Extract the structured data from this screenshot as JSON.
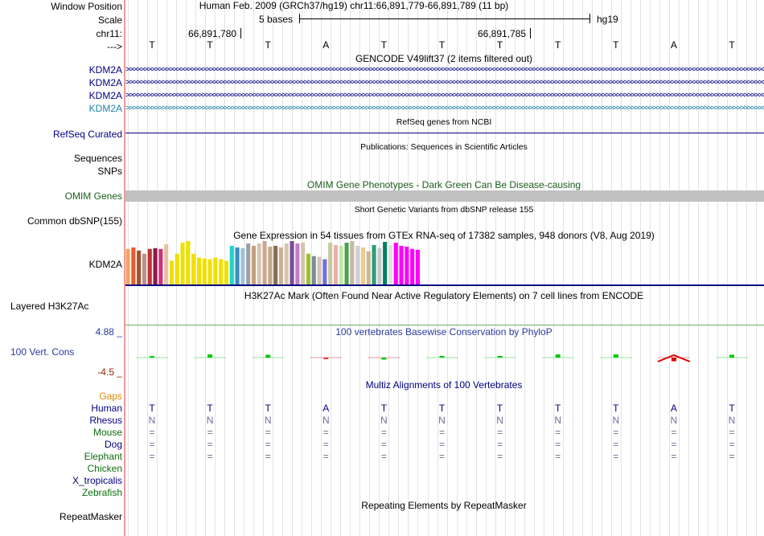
{
  "labels": {
    "window_position": "Window Position",
    "scale": "Scale",
    "chrom": "chr11:",
    "strand_arrow": "--->",
    "gencode_1": "KDM2A",
    "gencode_2": "KDM2A",
    "gencode_3": "KDM2A",
    "gencode_4": "KDM2A",
    "refseq": "RefSeq Curated",
    "sequences": "Sequences",
    "snps": "SNPs",
    "omim": "OMIM Genes",
    "dbsnp": "Common dbSNP(155)",
    "gtex_gene": "KDM2A",
    "h3k27ac": "Layered H3K27Ac",
    "cons_max": "4.88 _",
    "cons": "100 Vert. Cons",
    "cons_min": "-4.5 _",
    "gaps": "Gaps",
    "human": "Human",
    "rhesus": "Rhesus",
    "mouse": "Mouse",
    "dog": "Dog",
    "elephant": "Elephant",
    "chicken": "Chicken",
    "x_tropicalis": "X_tropicalis",
    "zebrafish": "Zebrafish",
    "repeatmasker": "RepeatMasker"
  },
  "header": {
    "position_text": "Human Feb. 2009 (GRCh37/hg19)   chr11:66,891,779-66,891,789 (11 bp)",
    "scale_text": "5 bases",
    "assembly": "hg19",
    "coord_1": "66,891,780",
    "coord_2": "66,891,785"
  },
  "sequence": [
    "T",
    "T",
    "T",
    "A",
    "T",
    "T",
    "T",
    "T",
    "T",
    "A",
    "T"
  ],
  "tracks": {
    "gencode_title": "GENCODE V49lift37 (2 items filtered out)",
    "refseq_title": "RefSeq genes from NCBI",
    "publications_title": "Publications: Sequences in Scientific Articles",
    "omim_title": "OMIM Gene Phenotypes - Dark Green Can Be Disease-causing",
    "dbsnp_title": "Short Genetic Variants from dbSNP release 155",
    "gtex_title": "Gene Expression in 54 tissues from GTEx RNA-seq of 17382 samples, 948 donors (V8, Aug 2019)",
    "h3k27ac_title": "H3K27Ac Mark (Often Found Near Active Regulatory Elements) on 7 cell lines from ENCODE",
    "phylop_title": "100 vertebrates Basewise Conservation by PhyloP",
    "multiz_title": "Multiz Alignments of 100 Vertebrates",
    "repeatmasker_title": "Repeating Elements by RepeatMasker"
  },
  "alignment": {
    "rhesus": [
      "N",
      "N",
      "N",
      "N",
      "N",
      "N",
      "N",
      "N",
      "N",
      "N",
      "N"
    ],
    "mouse": [
      "=",
      "=",
      "=",
      "=",
      "=",
      "=",
      "=",
      "=",
      "=",
      "=",
      "="
    ],
    "dog": [
      "=",
      "=",
      "=",
      "=",
      "=",
      "=",
      "=",
      "=",
      "=",
      "=",
      "="
    ],
    "elephant": [
      "=",
      "=",
      "=",
      "=",
      "=",
      "=",
      "=",
      "=",
      "=",
      "=",
      "="
    ]
  },
  "colors": {
    "navy": "#000080",
    "gencode_last": "#1f7fa8",
    "omim_green": "#1a5e1a",
    "gaps_orange": "#d58b00",
    "species_green": "#0c6d0c",
    "cons_blue": "#2a3a9f",
    "cons_red": "#8b2a00",
    "omim_bar": "#c0c0c0"
  },
  "gtex": {
    "values": [
      45,
      47,
      43,
      39,
      45,
      46,
      45,
      51,
      30,
      39,
      53,
      55,
      39,
      34,
      33,
      32,
      34,
      32,
      30,
      49,
      47,
      46,
      52,
      49,
      52,
      55,
      48,
      49,
      47,
      52,
      55,
      52,
      53,
      39,
      36,
      35,
      32,
      53,
      50,
      49,
      53,
      55,
      49,
      47,
      42,
      50,
      46,
      54,
      50,
      53,
      49,
      48,
      45,
      44
    ],
    "colors": [
      "#f4a460",
      "#e65c2e",
      "#a0522d",
      "#bc8f8f",
      "#bf3232",
      "#8b1a4a",
      "#cd3278",
      "#e5c1a1",
      "#f0e000",
      "#f0e000",
      "#f0e000",
      "#f0e000",
      "#f0e000",
      "#f0e000",
      "#f0e000",
      "#f0e000",
      "#f0e000",
      "#f0e000",
      "#f0e000",
      "#1ed4cc",
      "#3a8cc0",
      "#9ec0e0",
      "#a0a0a0",
      "#c4a080",
      "#d8c4b0",
      "#c8a890",
      "#c4a888",
      "#8b6d4f",
      "#c8b098",
      "#d4c4b0",
      "#7a4a9a",
      "#c07cc8",
      "#d4c4a8",
      "#9ac030",
      "#7c8b9a",
      "#d4c4b0",
      "#7070e0",
      "#c8c8a0",
      "#e8b0a8",
      "#c0e8a8",
      "#50a050",
      "#c4b8a8",
      "#d0d0d0",
      "#f4c890",
      "#c8b898",
      "#2c9c7c",
      "#c8c8c8",
      "#008060",
      "#e0e0e0",
      "#ff00ff",
      "#ff00ff",
      "#ff00ff",
      "#ff00ff",
      "#ff00ff"
    ]
  },
  "phylop": {
    "values": [
      0.4,
      0.8,
      0.7,
      -0.1,
      -0.5,
      0.2,
      0.1,
      0.8,
      0.8,
      -0.9,
      0.7
    ],
    "colors": [
      "#00c800",
      "#00c800",
      "#00c800",
      "#d04040",
      "#00c800",
      "#00c800",
      "#00c800",
      "#00c800",
      "#00c800",
      "#e00000",
      "#00c800"
    ]
  }
}
